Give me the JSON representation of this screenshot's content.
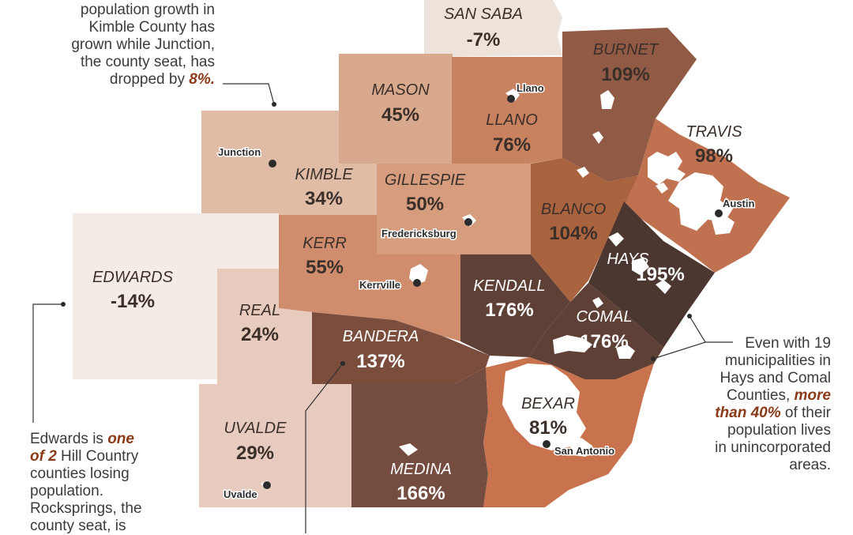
{
  "counties": [
    {
      "name": "SAN SABA",
      "pct": "-7%",
      "fill": "#eee3da",
      "text": "dark"
    },
    {
      "name": "BURNET",
      "pct": "109%",
      "fill": "#915a44",
      "text": "dark"
    },
    {
      "name": "MASON",
      "pct": "45%",
      "fill": "#d8a98d",
      "text": "dark"
    },
    {
      "name": "LLANO",
      "pct": "76%",
      "fill": "#c9825f",
      "text": "dark"
    },
    {
      "name": "KIMBLE",
      "pct": "34%",
      "fill": "#e0bca6",
      "text": "dark"
    },
    {
      "name": "GILLESPIE",
      "pct": "50%",
      "fill": "#d59c7e",
      "text": "dark"
    },
    {
      "name": "TRAVIS",
      "pct": "98%",
      "fill": "#c0714f",
      "text": "dark"
    },
    {
      "name": "BLANCO",
      "pct": "104%",
      "fill": "#a9633f",
      "text": "dark"
    },
    {
      "name": "EDWARDS",
      "pct": "-14%",
      "fill": "#f4ebe6",
      "text": "dark"
    },
    {
      "name": "KERR",
      "pct": "55%",
      "fill": "#cf8d6d",
      "text": "dark"
    },
    {
      "name": "HAYS",
      "pct": "195%",
      "fill": "#4b3630",
      "text": "dark"
    },
    {
      "name": "REAL",
      "pct": "24%",
      "fill": "#e7cbbd",
      "text": "dark"
    },
    {
      "name": "KENDALL",
      "pct": "176%",
      "fill": "#5f4037",
      "text": "dark"
    },
    {
      "name": "COMAL",
      "pct": "176%",
      "fill": "#5f4037",
      "text": "dark"
    },
    {
      "name": "BANDERA",
      "pct": "137%",
      "fill": "#7b4d3c",
      "text": "dark"
    },
    {
      "name": "UVALDE",
      "pct": "29%",
      "fill": "#e6cbbe",
      "text": "dark"
    },
    {
      "name": "MEDINA",
      "pct": "166%",
      "fill": "#744c40",
      "text": "dark"
    },
    {
      "name": "BEXAR",
      "pct": "81%",
      "fill": "#c8734d",
      "text": "light"
    }
  ],
  "cities": [
    "Llano",
    "Junction",
    "Fredericksburg",
    "Austin",
    "Kerrville",
    "San Antonio",
    "Uvalde"
  ],
  "annotations": {
    "top_left": {
      "l1": "population growth in",
      "l2": "Kimble County has",
      "l3": "grown while Junction,",
      "l4": "the county seat, has",
      "l5_pre": "dropped by ",
      "l5_hl": "8%."
    },
    "right": {
      "l1": "Even with 19",
      "l2": "municipalities in",
      "l3": "Hays and Comal",
      "l4_pre": "Counties, ",
      "l4_hl": "more",
      "l5_hl": "than 40%",
      "l5_post": " of their",
      "l6": "population lives",
      "l7": "in unincorporated",
      "l8": "areas."
    },
    "bottom_left": {
      "l1_pre": "Edwards is ",
      "l1_hl": "one",
      "l2_hl": "of 2",
      "l2_post": " Hill Country",
      "l3": "counties losing",
      "l4": "population.",
      "l5": "Rocksprings, the",
      "l6": "county seat, is"
    }
  }
}
